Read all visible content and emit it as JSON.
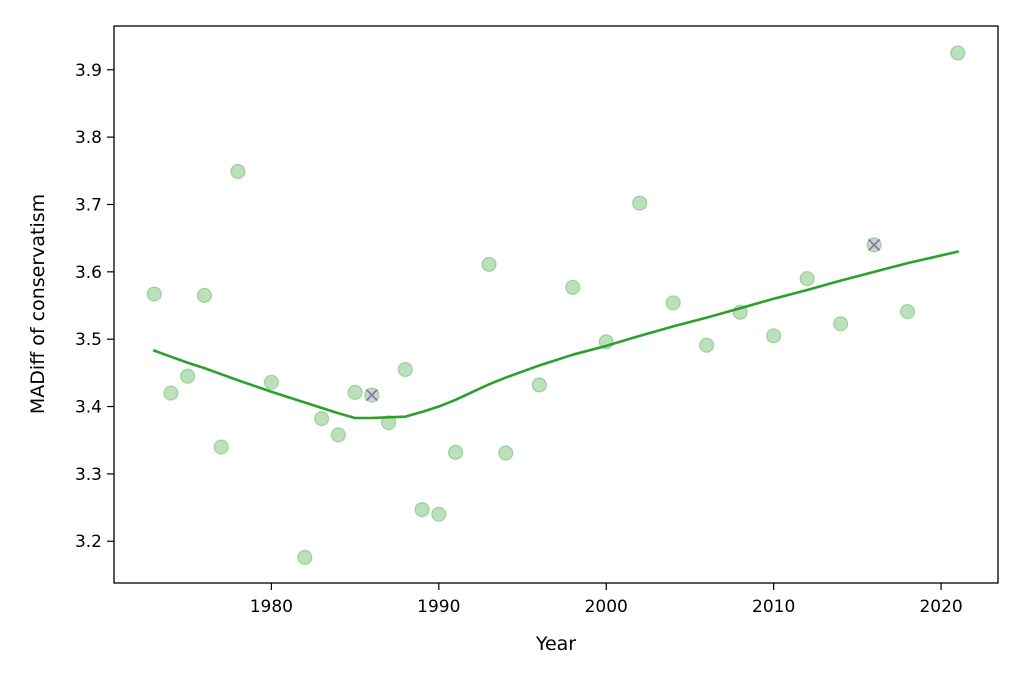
{
  "chart_data": {
    "type": "scatter",
    "title": "",
    "xlabel": "Year",
    "ylabel": "MADiff of conservatism",
    "xlim": [
      1970.6,
      2023.4
    ],
    "ylim": [
      3.138,
      3.965
    ],
    "xticks": [
      1980,
      1990,
      2000,
      2010,
      2020
    ],
    "yticks": [
      3.2,
      3.3,
      3.4,
      3.5,
      3.6,
      3.7,
      3.8,
      3.9
    ],
    "grid": false,
    "legend": "none",
    "colors": {
      "points": "#2ca02c",
      "line": "#2ca02c",
      "marker_x": "#9467bd"
    },
    "series": [
      {
        "type": "scatter",
        "x": [
          1973,
          1974,
          1975,
          1976,
          1977,
          1978,
          1980,
          1982,
          1983,
          1984,
          1985,
          1986,
          1987,
          1988,
          1989,
          1990,
          1991,
          1993,
          1994,
          1996,
          1998,
          2000,
          2002,
          2004,
          2006,
          2008,
          2010,
          2012,
          2014,
          2016,
          2018,
          2021
        ],
        "y": [
          3.567,
          3.42,
          3.445,
          3.565,
          3.34,
          3.749,
          3.436,
          3.176,
          3.382,
          3.358,
          3.421,
          3.417,
          3.376,
          3.455,
          3.247,
          3.24,
          3.332,
          3.611,
          3.331,
          3.432,
          3.577,
          3.496,
          3.702,
          3.554,
          3.491,
          3.54,
          3.505,
          3.59,
          3.523,
          3.64,
          3.541,
          3.925
        ]
      },
      {
        "type": "line",
        "x": [
          1973,
          1974,
          1975,
          1976,
          1977,
          1978,
          1980,
          1982,
          1983,
          1984,
          1985,
          1986,
          1987,
          1988,
          1989,
          1990,
          1991,
          1993,
          1994,
          1996,
          1998,
          2000,
          2002,
          2004,
          2006,
          2008,
          2010,
          2012,
          2014,
          2016,
          2018,
          2021
        ],
        "y": [
          3.483,
          3.474,
          3.465,
          3.457,
          3.448,
          3.439,
          3.422,
          3.406,
          3.398,
          3.39,
          3.383,
          3.383,
          3.384,
          3.385,
          3.392,
          3.4,
          3.41,
          3.433,
          3.443,
          3.461,
          3.477,
          3.49,
          3.505,
          3.519,
          3.532,
          3.546,
          3.56,
          3.573,
          3.587,
          3.6,
          3.613,
          3.63
        ]
      },
      {
        "type": "x-marker",
        "x": [
          1986,
          2016
        ],
        "y": [
          3.417,
          3.64
        ]
      }
    ]
  }
}
